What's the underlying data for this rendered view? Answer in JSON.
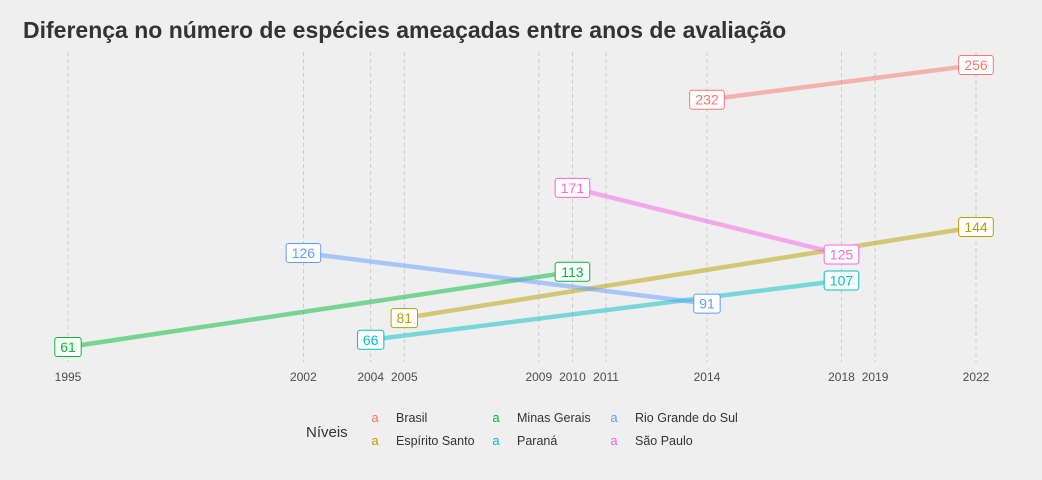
{
  "chart_data": {
    "type": "line",
    "title": "Diferença no número de espécies ameaçadas entre anos de avaliação",
    "xlabel": "",
    "ylabel": "",
    "x_ticks": [
      1995,
      2002,
      2004,
      2005,
      2009,
      2010,
      2011,
      2014,
      2018,
      2019,
      2022
    ],
    "xlim": [
      1995,
      2022
    ],
    "ylim": [
      61,
      256
    ],
    "grid": "vertical dashed",
    "legend": {
      "title": "Níveis",
      "placement": "bottom",
      "key_glyph": "a",
      "entries": [
        "Brasil",
        "Espírito Santo",
        "Minas Gerais",
        "Paraná",
        "Rio Grande do Sul",
        "São Paulo"
      ]
    },
    "series": [
      {
        "name": "Brasil",
        "color": "#F8766D",
        "points": [
          {
            "x": 2014,
            "y": 232
          },
          {
            "x": 2022,
            "y": 256
          }
        ]
      },
      {
        "name": "Espírito Santo",
        "color": "#B79F00",
        "points": [
          {
            "x": 2005,
            "y": 81
          },
          {
            "x": 2022,
            "y": 144
          }
        ]
      },
      {
        "name": "Minas Gerais",
        "color": "#00BA38",
        "points": [
          {
            "x": 1995,
            "y": 61
          },
          {
            "x": 2010,
            "y": 113
          }
        ]
      },
      {
        "name": "Paraná",
        "color": "#00BFC4",
        "points": [
          {
            "x": 2004,
            "y": 66
          },
          {
            "x": 2018,
            "y": 107
          }
        ]
      },
      {
        "name": "Rio Grande do Sul",
        "color": "#619CFF",
        "points": [
          {
            "x": 2002,
            "y": 126
          },
          {
            "x": 2014,
            "y": 91
          }
        ]
      },
      {
        "name": "São Paulo",
        "color": "#F564E3",
        "points": [
          {
            "x": 2010,
            "y": 171
          },
          {
            "x": 2018,
            "y": 125
          }
        ]
      }
    ]
  }
}
